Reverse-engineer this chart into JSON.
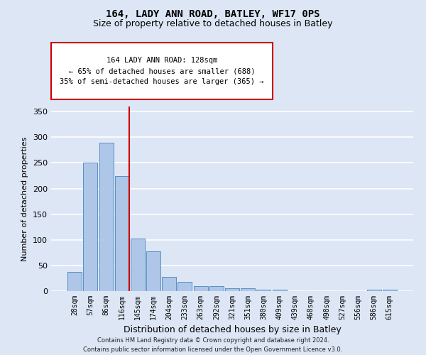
{
  "title1": "164, LADY ANN ROAD, BATLEY, WF17 0PS",
  "title2": "Size of property relative to detached houses in Batley",
  "xlabel": "Distribution of detached houses by size in Batley",
  "ylabel": "Number of detached properties",
  "categories": [
    "28sqm",
    "57sqm",
    "86sqm",
    "116sqm",
    "145sqm",
    "174sqm",
    "204sqm",
    "233sqm",
    "263sqm",
    "292sqm",
    "321sqm",
    "351sqm",
    "380sqm",
    "409sqm",
    "439sqm",
    "468sqm",
    "498sqm",
    "527sqm",
    "556sqm",
    "586sqm",
    "615sqm"
  ],
  "values": [
    38,
    250,
    290,
    225,
    103,
    78,
    28,
    18,
    10,
    10,
    5,
    5,
    3,
    3,
    0,
    0,
    0,
    0,
    0,
    3,
    3
  ],
  "bar_color": "#aec6e8",
  "bar_edgecolor": "#5a8fc2",
  "vline_color": "#cc0000",
  "annotation_line1": "164 LADY ANN ROAD: 128sqm",
  "annotation_line2": "← 65% of detached houses are smaller (688)",
  "annotation_line3": "35% of semi-detached houses are larger (365) →",
  "annotation_box_color": "#cc0000",
  "ylim": [
    0,
    360
  ],
  "yticks": [
    0,
    50,
    100,
    150,
    200,
    250,
    300,
    350
  ],
  "bg_color": "#dce6f5",
  "plot_bg_color": "#dce6f5",
  "grid_color": "#ffffff",
  "fig_bg_color": "#dce6f5",
  "footer1": "Contains HM Land Registry data © Crown copyright and database right 2024.",
  "footer2": "Contains public sector information licensed under the Open Government Licence v3.0.",
  "vline_xindex": 3.45
}
